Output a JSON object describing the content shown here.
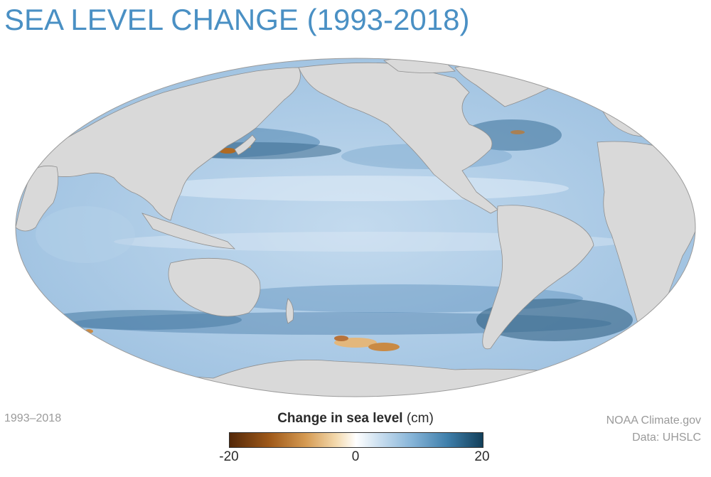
{
  "title": "SEA LEVEL CHANGE (1993-2018)",
  "period_label": "1993–2018",
  "source": {
    "line1": "NOAA Climate.gov",
    "line2": "Data: UHSLC"
  },
  "legend": {
    "title_bold": "Change in sea level",
    "title_unit": "(cm)",
    "min_label": "-20",
    "mid_label": "0",
    "max_label": "20",
    "range": [
      -20,
      20
    ],
    "colors": {
      "low": "#542808",
      "mid": "#ffffff",
      "high": "#123f5a"
    }
  },
  "map": {
    "projection": "mollweide",
    "land_color": "#d9d9d9",
    "ocean_base_color": "#a9c8e4"
  }
}
